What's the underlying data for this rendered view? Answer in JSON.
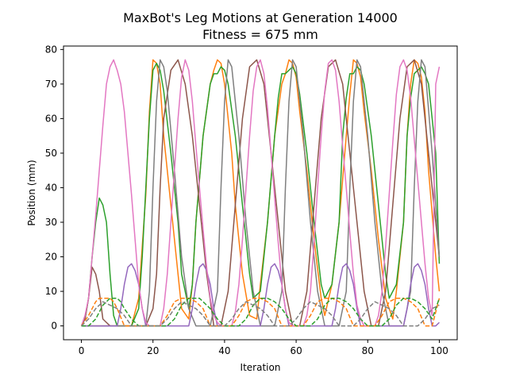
{
  "chart_data": {
    "type": "line",
    "title": "MaxBot's Leg Motions at Generation 14000",
    "subtitle": "Fitness = 675 mm",
    "xlabel": "Iteration",
    "ylabel": "Position (mm)",
    "xlim": [
      -5,
      105
    ],
    "ylim": [
      -4,
      81
    ],
    "xticks": [
      0,
      20,
      40,
      60,
      80,
      100
    ],
    "yticks": [
      0,
      10,
      20,
      30,
      40,
      50,
      60,
      70,
      80
    ],
    "grid": false,
    "series": [
      {
        "color": "#ff7f0e",
        "style": "solid",
        "x": [
          0,
          2,
          3,
          4,
          5,
          6,
          9,
          10,
          12,
          14,
          16,
          18,
          19,
          20,
          21,
          22,
          23,
          25,
          27,
          28,
          30,
          31,
          32,
          34,
          36,
          37,
          38,
          39,
          40,
          41,
          42,
          43,
          45,
          47,
          49,
          50,
          52,
          54,
          56,
          57,
          58,
          59,
          60,
          61,
          63,
          65,
          67,
          68,
          70,
          72,
          74,
          75,
          76,
          77,
          78,
          79,
          81,
          83,
          85,
          87,
          88,
          90,
          91,
          92,
          93,
          94,
          95,
          96,
          97,
          99,
          100
        ],
        "y": [
          0,
          0,
          0,
          0,
          0,
          0,
          0,
          0,
          0,
          0,
          8,
          38,
          62,
          77,
          76,
          70,
          55,
          35,
          15,
          5,
          2,
          12,
          30,
          55,
          70,
          74,
          77,
          76,
          70,
          60,
          50,
          35,
          15,
          3,
          2,
          12,
          30,
          55,
          70,
          73,
          77,
          76,
          72,
          62,
          45,
          25,
          8,
          3,
          12,
          30,
          55,
          67,
          77,
          76,
          72,
          62,
          45,
          25,
          8,
          2,
          10,
          30,
          55,
          70,
          77,
          76,
          72,
          62,
          45,
          20,
          10
        ]
      },
      {
        "color": "#2ca02c",
        "style": "solid",
        "x": [
          0,
          1,
          2,
          3,
          4,
          5,
          6,
          7,
          8,
          9,
          10,
          12,
          14,
          16,
          17,
          18,
          19,
          20,
          21,
          22,
          23,
          25,
          27,
          28,
          30,
          31,
          32,
          34,
          36,
          37,
          38,
          39,
          40,
          41,
          43,
          45,
          47,
          48,
          50,
          52,
          54,
          55,
          56,
          57,
          58,
          59,
          60,
          61,
          63,
          65,
          67,
          68,
          70,
          72,
          73,
          74,
          75,
          76,
          77,
          78,
          79,
          81,
          83,
          85,
          86,
          88,
          90,
          91,
          92,
          93,
          94,
          95,
          96,
          97,
          99,
          100
        ],
        "y": [
          0,
          2,
          8,
          20,
          30,
          37,
          35,
          30,
          15,
          3,
          0,
          0,
          0,
          5,
          20,
          40,
          60,
          74,
          76,
          74,
          68,
          50,
          30,
          15,
          5,
          12,
          30,
          55,
          70,
          73,
          73,
          75,
          74,
          70,
          55,
          35,
          15,
          8,
          10,
          30,
          55,
          66,
          73,
          73,
          74,
          75,
          73,
          67,
          50,
          30,
          12,
          8,
          12,
          30,
          55,
          66,
          73,
          73,
          75,
          74,
          70,
          55,
          35,
          15,
          8,
          12,
          30,
          55,
          66,
          73,
          74,
          75,
          73,
          70,
          50,
          18
        ]
      },
      {
        "color": "#8c564b",
        "style": "solid",
        "x": [
          0,
          1,
          2,
          3,
          4,
          5,
          6,
          7,
          8,
          9,
          10,
          12,
          14,
          16,
          18,
          20,
          21,
          22,
          23,
          25,
          27,
          29,
          31,
          33,
          35,
          37,
          39,
          41,
          43,
          45,
          47,
          49,
          51,
          53,
          55,
          57,
          59,
          61,
          63,
          65,
          67,
          69,
          71,
          73,
          75,
          77,
          79,
          81,
          83,
          85,
          87,
          89,
          91,
          93,
          95,
          97,
          99,
          100
        ],
        "y": [
          0,
          2,
          8,
          17,
          15,
          10,
          2,
          1,
          0,
          0,
          0,
          0,
          0,
          0,
          0,
          5,
          15,
          40,
          60,
          74,
          77,
          70,
          55,
          35,
          15,
          0,
          0,
          10,
          35,
          60,
          75,
          77,
          70,
          50,
          30,
          10,
          0,
          0,
          10,
          35,
          60,
          75,
          77,
          70,
          50,
          30,
          10,
          0,
          0,
          10,
          35,
          60,
          75,
          77,
          70,
          50,
          30,
          20
        ]
      },
      {
        "color": "#7f7f7f",
        "style": "solid",
        "x": [
          0,
          2,
          4,
          6,
          8,
          10,
          12,
          14,
          16,
          18,
          19,
          20,
          21,
          22,
          23,
          24,
          26,
          28,
          30,
          32,
          34,
          36,
          38,
          39,
          40,
          41,
          42,
          44,
          46,
          48,
          50,
          52,
          54,
          56,
          57,
          58,
          59,
          60,
          62,
          64,
          66,
          68,
          70,
          72,
          74,
          75,
          76,
          77,
          78,
          80,
          82,
          84,
          86,
          88,
          90,
          92,
          93,
          94,
          95,
          96,
          98,
          100
        ],
        "y": [
          0,
          0,
          0,
          0,
          0,
          0,
          0,
          0,
          0,
          0,
          10,
          40,
          65,
          77,
          75,
          68,
          45,
          20,
          5,
          0,
          0,
          0,
          10,
          40,
          65,
          77,
          75,
          55,
          30,
          10,
          0,
          0,
          0,
          10,
          40,
          65,
          77,
          75,
          55,
          30,
          10,
          0,
          0,
          0,
          10,
          40,
          65,
          77,
          75,
          55,
          30,
          10,
          0,
          0,
          0,
          10,
          40,
          65,
          77,
          75,
          50,
          20
        ]
      },
      {
        "color": "#9467bd",
        "style": "solid",
        "x": [
          0,
          1,
          2,
          3,
          4,
          5,
          6,
          7,
          8,
          9,
          10,
          11,
          12,
          13,
          14,
          15,
          16,
          17,
          18,
          19,
          20,
          21,
          22,
          23,
          24,
          25,
          26,
          27,
          28,
          29,
          30,
          31,
          32,
          33,
          34,
          35,
          36,
          37,
          38,
          39,
          40,
          41,
          42,
          43,
          44,
          45,
          46,
          47,
          48,
          49,
          50,
          51,
          52,
          53,
          54,
          55,
          56,
          57,
          58,
          59,
          60,
          61,
          62,
          63,
          64,
          65,
          66,
          67,
          68,
          69,
          70,
          71,
          72,
          73,
          74,
          75,
          76,
          77,
          78,
          79,
          80,
          81,
          82,
          83,
          84,
          85,
          86,
          87,
          88,
          89,
          90,
          91,
          92,
          93,
          94,
          95,
          96,
          97,
          98,
          99,
          100
        ],
        "y": [
          0,
          0,
          0,
          0,
          0,
          0,
          0,
          0,
          0,
          0,
          0,
          5,
          12,
          17,
          18,
          16,
          12,
          5,
          0,
          0,
          0,
          0,
          0,
          0,
          0,
          0,
          0,
          0,
          0,
          0,
          0,
          5,
          12,
          17,
          18,
          16,
          12,
          5,
          0,
          0,
          0,
          0,
          0,
          0,
          0,
          0,
          0,
          0,
          0,
          0,
          0,
          5,
          12,
          17,
          18,
          16,
          12,
          5,
          0,
          0,
          0,
          0,
          0,
          0,
          0,
          0,
          0,
          0,
          0,
          0,
          0,
          5,
          12,
          17,
          18,
          16,
          12,
          5,
          0,
          0,
          0,
          0,
          0,
          0,
          0,
          0,
          0,
          0,
          0,
          0,
          0,
          5,
          12,
          17,
          18,
          16,
          12,
          5,
          0,
          0,
          1
        ]
      },
      {
        "color": "#e377c2",
        "style": "solid",
        "x": [
          0,
          1,
          2,
          3,
          4,
          5,
          6,
          7,
          8,
          9,
          10,
          11,
          12,
          13,
          14,
          15,
          16,
          17,
          18,
          19,
          20,
          21,
          22,
          23,
          24,
          25,
          26,
          27,
          28,
          29,
          30,
          31,
          32,
          33,
          34,
          35,
          36,
          37,
          38,
          39,
          40,
          41,
          42,
          43,
          44,
          45,
          46,
          47,
          48,
          49,
          50,
          51,
          52,
          53,
          54,
          55,
          56,
          57,
          58,
          59,
          60,
          61,
          62,
          63,
          64,
          65,
          66,
          67,
          68,
          69,
          70,
          71,
          72,
          73,
          74,
          75,
          76,
          77,
          78,
          79,
          80,
          81,
          82,
          83,
          84,
          85,
          86,
          87,
          88,
          89,
          90,
          91,
          92,
          93,
          94,
          95,
          96,
          97,
          98,
          99,
          100
        ],
        "y": [
          0,
          3,
          8,
          20,
          32,
          45,
          58,
          70,
          75,
          77,
          74,
          70,
          62,
          50,
          38,
          25,
          12,
          5,
          1,
          0,
          0,
          0,
          0,
          5,
          15,
          30,
          45,
          60,
          72,
          77,
          74,
          65,
          52,
          40,
          28,
          17,
          8,
          3,
          1,
          0,
          0,
          0,
          0,
          4,
          12,
          25,
          40,
          55,
          68,
          75,
          77,
          73,
          63,
          50,
          37,
          24,
          12,
          5,
          1,
          0,
          0,
          0,
          0,
          3,
          10,
          24,
          40,
          55,
          68,
          76,
          77,
          74,
          65,
          52,
          40,
          27,
          15,
          6,
          2,
          0,
          0,
          0,
          0,
          3,
          10,
          23,
          38,
          53,
          67,
          75,
          77,
          74,
          66,
          54,
          42,
          30,
          18,
          8,
          3,
          70,
          75
        ]
      },
      {
        "color": "#ff7f0e",
        "style": "dashed",
        "x": [
          0,
          2,
          4,
          5,
          6,
          7,
          8,
          9,
          10,
          12,
          14,
          16,
          18,
          20,
          22,
          24,
          26,
          28,
          30,
          32,
          34,
          36,
          38,
          40,
          42,
          44,
          46,
          48,
          50,
          52,
          54,
          56,
          58,
          60,
          62,
          64,
          66,
          68,
          70,
          72,
          74,
          76,
          78,
          80,
          82,
          84,
          86,
          88,
          90,
          92,
          94,
          96,
          98,
          100
        ],
        "y": [
          0,
          3,
          7,
          8,
          8,
          8,
          8,
          7,
          5,
          0,
          0,
          0,
          0,
          0,
          0,
          3,
          7,
          8,
          8,
          7,
          5,
          0,
          0,
          0,
          0,
          3,
          7,
          8,
          8,
          7,
          5,
          0,
          0,
          0,
          0,
          3,
          7,
          8,
          8,
          7,
          5,
          0,
          0,
          0,
          0,
          3,
          7,
          8,
          8,
          7,
          5,
          0,
          0,
          8
        ]
      },
      {
        "color": "#2ca02c",
        "style": "dashed",
        "x": [
          0,
          2,
          4,
          6,
          8,
          9,
          10,
          11,
          12,
          14,
          16,
          18,
          20,
          22,
          24,
          26,
          28,
          30,
          32,
          33,
          34,
          36,
          38,
          40,
          42,
          44,
          46,
          48,
          50,
          52,
          54,
          56,
          58,
          60,
          62,
          64,
          66,
          68,
          70,
          72,
          74,
          76,
          78,
          80,
          82,
          84,
          86,
          88,
          90,
          92,
          94,
          96,
          98,
          100
        ],
        "y": [
          0,
          0,
          2,
          6,
          8,
          8,
          8,
          7,
          5,
          2,
          0,
          0,
          0,
          0,
          0,
          2,
          6,
          8,
          8,
          8,
          7,
          5,
          2,
          0,
          0,
          0,
          2,
          6,
          8,
          8,
          7,
          5,
          2,
          0,
          0,
          0,
          2,
          6,
          8,
          8,
          7,
          5,
          2,
          0,
          0,
          0,
          2,
          6,
          8,
          8,
          7,
          5,
          2,
          8
        ]
      },
      {
        "color": "#7f7f7f",
        "style": "dashed",
        "x": [
          0,
          2,
          4,
          6,
          8,
          10,
          12,
          14,
          16,
          18,
          20,
          22,
          24,
          26,
          28,
          30,
          32,
          34,
          36,
          38,
          40,
          42,
          44,
          46,
          48,
          50,
          52,
          54,
          56,
          58,
          60,
          62,
          64,
          66,
          68,
          70,
          72,
          74,
          76,
          78,
          80,
          82,
          84,
          86,
          88,
          90,
          92,
          94,
          96,
          98,
          100
        ],
        "y": [
          0,
          2,
          5,
          7,
          6,
          5,
          3,
          0,
          0,
          0,
          0,
          0,
          2,
          5,
          7,
          6,
          5,
          3,
          0,
          0,
          0,
          2,
          5,
          7,
          6,
          5,
          3,
          0,
          0,
          0,
          2,
          5,
          7,
          6,
          5,
          3,
          0,
          0,
          0,
          2,
          5,
          7,
          6,
          5,
          3,
          0,
          0,
          0,
          2,
          5,
          6
        ]
      }
    ]
  }
}
